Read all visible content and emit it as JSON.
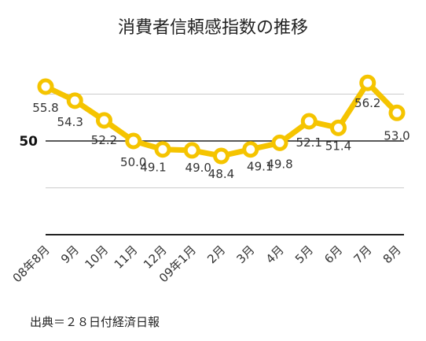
{
  "chart_data": {
    "type": "line",
    "title": "消費者信頼感指数の推移",
    "categories": [
      "08年8月",
      "9月",
      "10月",
      "11月",
      "12月",
      "09年1月",
      "2月",
      "3月",
      "4月",
      "5月",
      "6月",
      "7月",
      "8月"
    ],
    "values": [
      55.8,
      54.3,
      52.2,
      50.0,
      49.1,
      49.0,
      48.4,
      49.1,
      49.8,
      52.1,
      51.4,
      56.2,
      53.0
    ],
    "value_labels": [
      "55.8",
      "54.3",
      "52.2",
      "50.0",
      "49.1",
      "49.0",
      "48.4",
      "49.1",
      "49.8",
      "52.1",
      "51.4",
      "56.2",
      "53.0"
    ],
    "reference_line": {
      "value": 50,
      "label": "50"
    },
    "ylim": [
      40,
      60
    ],
    "grid": true,
    "legend": "none",
    "xlabel": "",
    "ylabel": "",
    "line_color": "#f5c400",
    "marker_fill": "#ffffff",
    "grid_color": "#cccccc",
    "axis_color": "#222222"
  },
  "footer": {
    "source": "出典＝２８日付経済日報"
  }
}
